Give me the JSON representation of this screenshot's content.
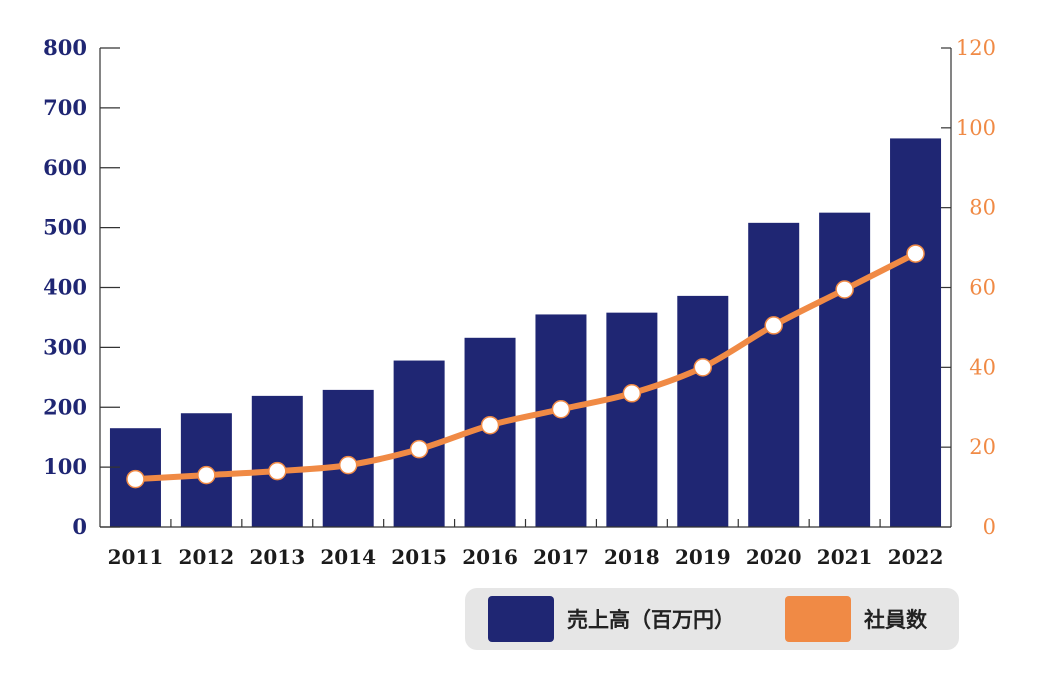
{
  "chart_data": {
    "type": "bar+line",
    "categories": [
      "2011",
      "2012",
      "2013",
      "2014",
      "2015",
      "2016",
      "2017",
      "2018",
      "2019",
      "2020",
      "2021",
      "2022"
    ],
    "series": [
      {
        "name": "売上高（百万円）",
        "type": "bar",
        "axis": "left",
        "color": "#1f2673",
        "values": [
          165,
          190,
          219,
          229,
          278,
          316,
          355,
          358,
          386,
          508,
          525,
          649
        ]
      },
      {
        "name": "社員数",
        "type": "line",
        "axis": "right",
        "color": "#f08a45",
        "values": [
          12,
          13,
          14,
          15.5,
          19.5,
          25.5,
          29.5,
          33.5,
          40,
          50.5,
          59.5,
          68.5
        ]
      }
    ],
    "left_axis": {
      "ylim": [
        0,
        800
      ],
      "ticks": [
        "0",
        "100",
        "200",
        "300",
        "400",
        "500",
        "600",
        "700",
        "800"
      ],
      "color": "#1f2673"
    },
    "right_axis": {
      "ylim": [
        0,
        120
      ],
      "ticks": [
        "0",
        "20",
        "40",
        "60",
        "80",
        "100",
        "120"
      ],
      "color": "#f08a45"
    },
    "legend_position": "bottom-right",
    "legend_background": "#e6e6e6",
    "grid": false
  }
}
